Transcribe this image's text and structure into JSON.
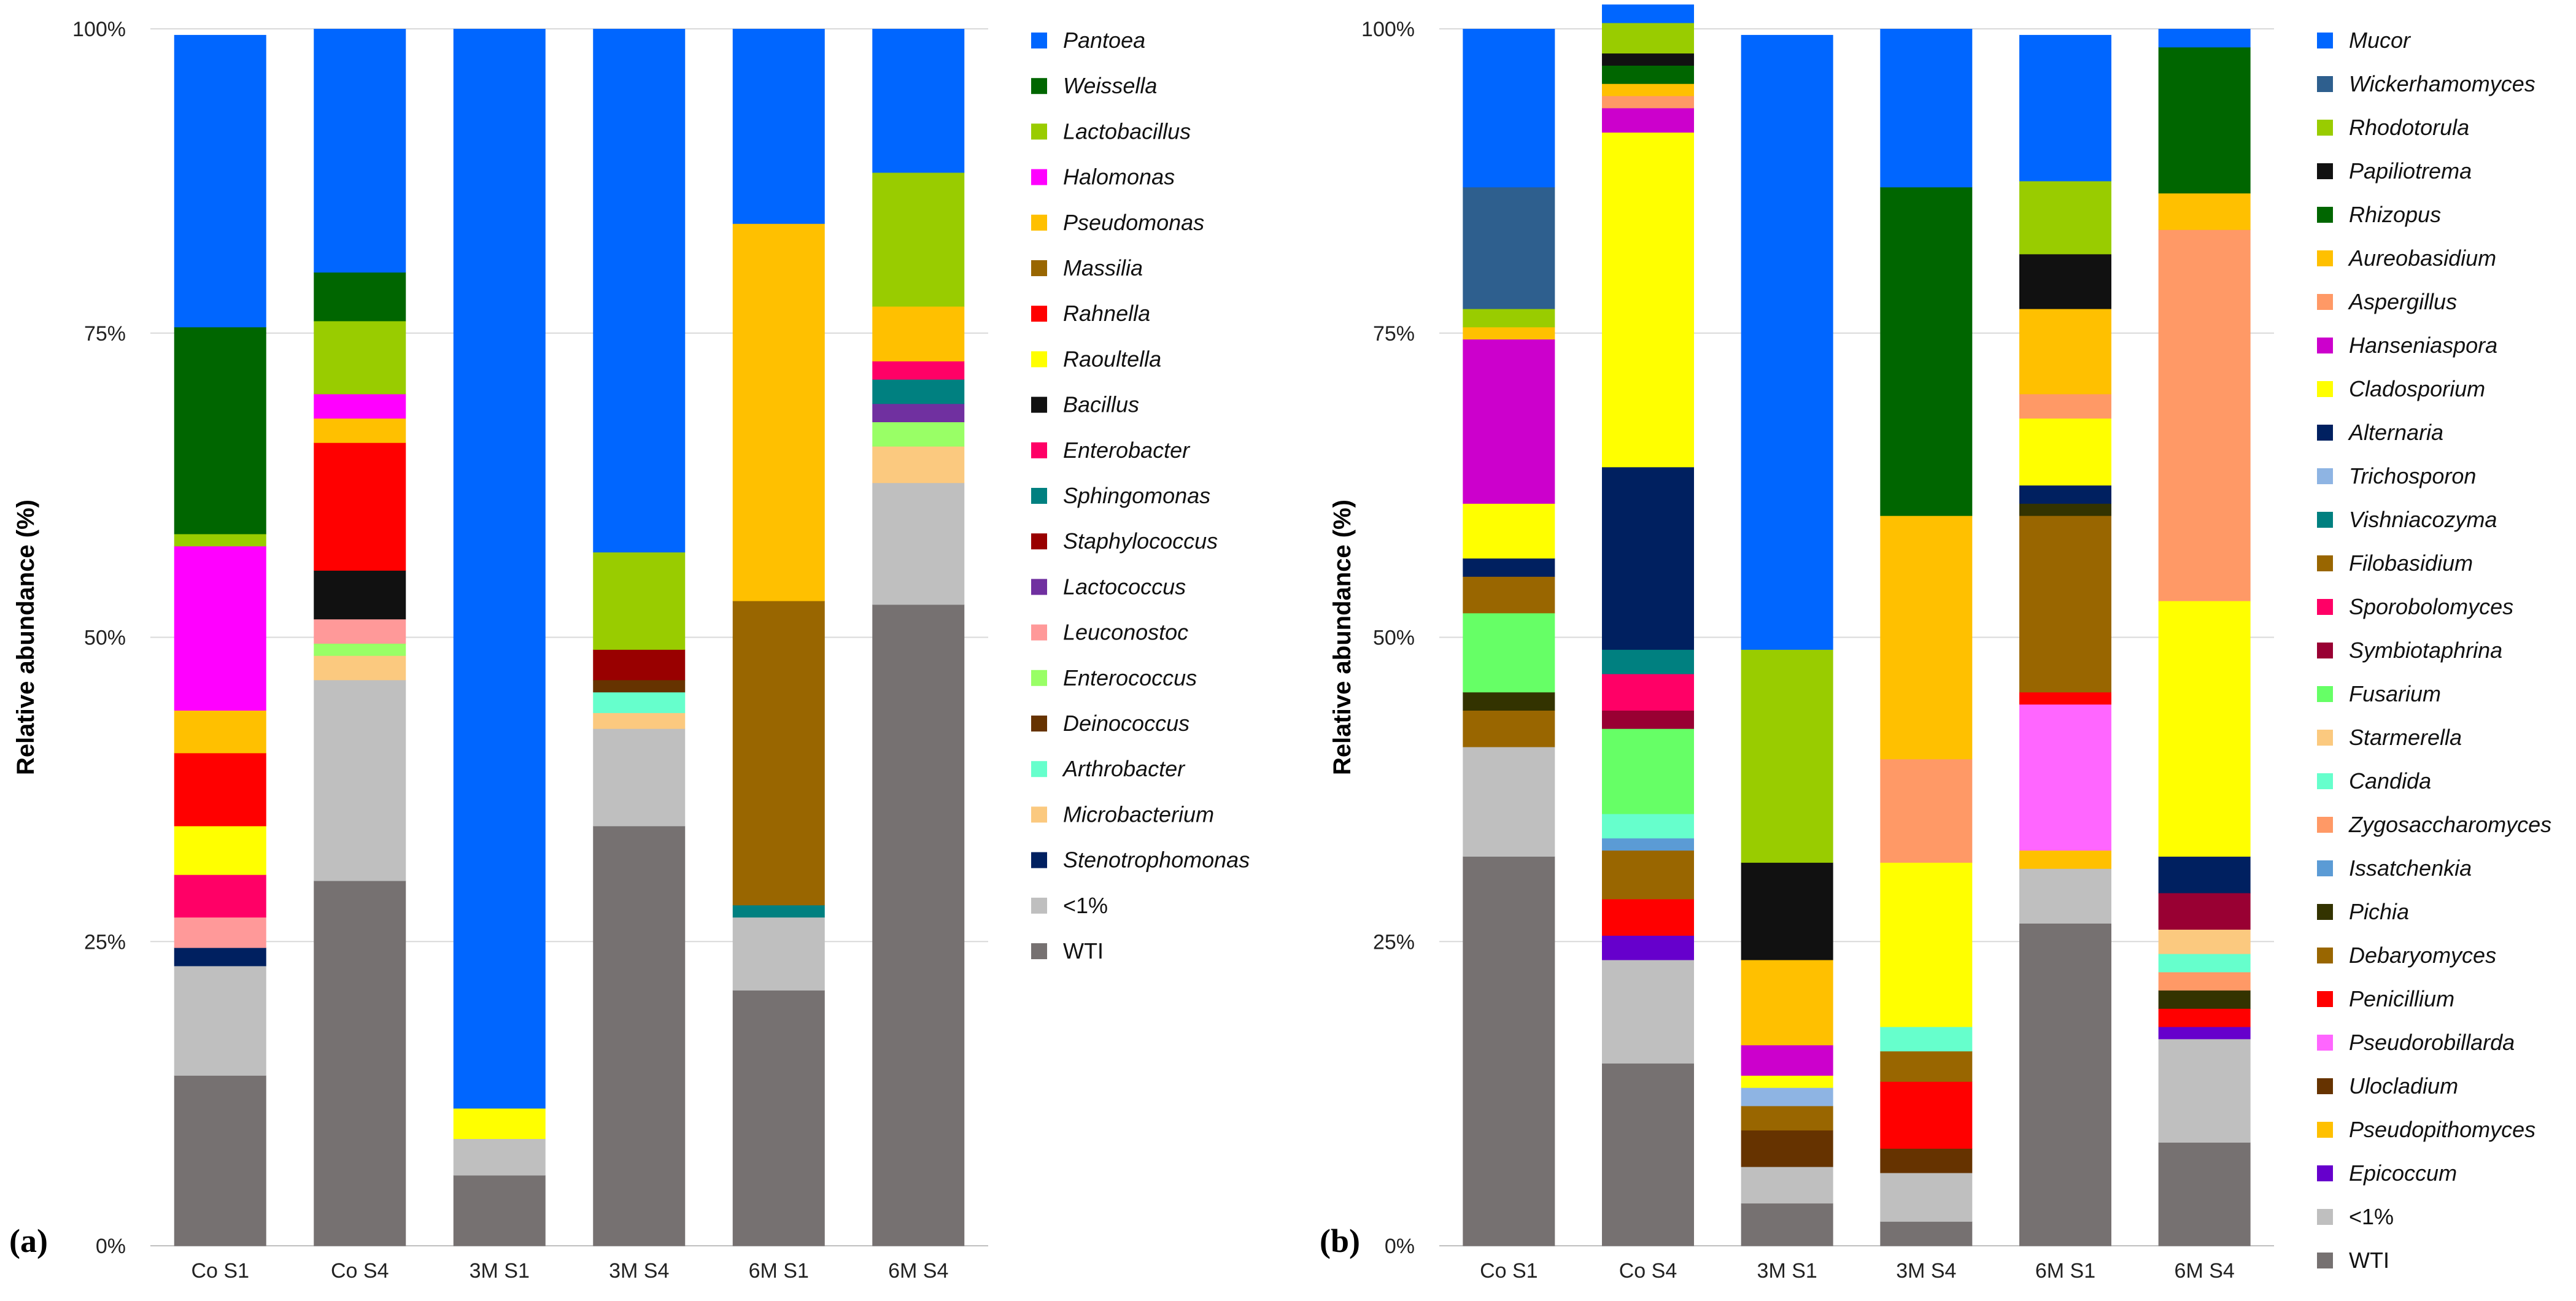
{
  "chart_data": [
    {
      "panel": "(a)",
      "type": "stacked-bar-100",
      "ylabel": "Relative abundance (%)",
      "y_ticks": [
        "0%",
        "25%",
        "50%",
        "75%",
        "100%"
      ],
      "ylim": [
        0,
        100
      ],
      "categories": [
        "Co S1",
        "Co S4",
        "3M S1",
        "3M S4",
        "6M S1",
        "6M S4"
      ],
      "legend_position": "right",
      "series": [
        {
          "name": "WTI",
          "italic": false,
          "color": "#767171",
          "values": [
            14.0,
            30.0,
            5.8,
            34.5,
            21.0,
            52.7
          ]
        },
        {
          "name": "<1%",
          "italic": false,
          "color": "#bfbfbf",
          "values": [
            9.0,
            16.5,
            3.0,
            8.0,
            6.0,
            10.0
          ]
        },
        {
          "name": "Stenotrophomonas",
          "italic": true,
          "color": "#002060",
          "values": [
            1.5,
            0,
            0,
            0,
            0,
            0
          ]
        },
        {
          "name": "Microbacterium",
          "italic": true,
          "color": "#fbc97f",
          "values": [
            0,
            2.0,
            0,
            1.3,
            0,
            3.0
          ]
        },
        {
          "name": "Arthrobacter",
          "italic": true,
          "color": "#66ffcc",
          "values": [
            0,
            0,
            0,
            1.7,
            0,
            0
          ]
        },
        {
          "name": "Deinococcus",
          "italic": true,
          "color": "#663300",
          "values": [
            0,
            0,
            0,
            1.0,
            0,
            0
          ]
        },
        {
          "name": "Enterococcus",
          "italic": true,
          "color": "#99ff66",
          "values": [
            0,
            1.0,
            0,
            0,
            0,
            2.0
          ]
        },
        {
          "name": "Leuconostoc",
          "italic": true,
          "color": "#ff9999",
          "values": [
            2.5,
            2.0,
            0,
            0,
            0,
            0
          ]
        },
        {
          "name": "Lactococcus",
          "italic": true,
          "color": "#7030a0",
          "values": [
            0,
            0,
            0,
            0,
            0,
            1.5
          ]
        },
        {
          "name": "Staphylococcus",
          "italic": true,
          "color": "#990000",
          "values": [
            0,
            0,
            0,
            2.5,
            0,
            0
          ]
        },
        {
          "name": "Sphingomonas",
          "italic": true,
          "color": "#008080",
          "values": [
            0,
            0,
            0,
            0,
            1.0,
            2.0
          ]
        },
        {
          "name": "Enterobacter",
          "italic": true,
          "color": "#ff0066",
          "values": [
            3.5,
            0,
            0,
            0,
            0,
            1.5
          ]
        },
        {
          "name": "Bacillus",
          "italic": true,
          "color": "#111111",
          "values": [
            0,
            4.0,
            0,
            0,
            0,
            0
          ]
        },
        {
          "name": "Raoultella",
          "italic": true,
          "color": "#ffff00",
          "values": [
            4.0,
            0,
            2.5,
            0,
            0,
            0
          ]
        },
        {
          "name": "Rahnella",
          "italic": true,
          "color": "#ff0000",
          "values": [
            6.0,
            10.5,
            0,
            0,
            0,
            0
          ]
        },
        {
          "name": "Massilia",
          "italic": true,
          "color": "#996600",
          "values": [
            0,
            0,
            0,
            0,
            25.0,
            0
          ]
        },
        {
          "name": "Pseudomonas",
          "italic": true,
          "color": "#ffc000",
          "values": [
            3.5,
            2.0,
            0,
            0,
            31.0,
            4.5
          ]
        },
        {
          "name": "Halomonas",
          "italic": true,
          "color": "#ff00ff",
          "values": [
            13.5,
            2.0,
            0,
            0,
            0,
            0
          ]
        },
        {
          "name": "Lactobacillus",
          "italic": true,
          "color": "#99cc00",
          "values": [
            1.0,
            6.0,
            0,
            8.0,
            0,
            11.0
          ]
        },
        {
          "name": "Weissella",
          "italic": true,
          "color": "#006600",
          "values": [
            17.0,
            4.0,
            0,
            0,
            0,
            0
          ]
        },
        {
          "name": "Pantoea",
          "italic": true,
          "color": "#0066ff",
          "values": [
            24.0,
            20.0,
            88.7,
            43.0,
            16.0,
            11.8
          ]
        }
      ]
    },
    {
      "panel": "(b)",
      "type": "stacked-bar-100",
      "ylabel": "Relative abundance (%)",
      "y_ticks": [
        "0%",
        "25%",
        "50%",
        "75%",
        "100%"
      ],
      "ylim": [
        0,
        100
      ],
      "categories": [
        "Co S1",
        "Co S4",
        "3M S1",
        "3M S4",
        "6M S1",
        "6M S4"
      ],
      "legend_position": "right",
      "series": [
        {
          "name": "WTI",
          "italic": false,
          "color": "#767171",
          "values": [
            32.0,
            15.0,
            3.5,
            2.0,
            26.5,
            8.5
          ]
        },
        {
          "name": "<1%",
          "italic": false,
          "color": "#bfbfbf",
          "values": [
            9.0,
            8.5,
            3.0,
            4.0,
            4.5,
            8.5
          ]
        },
        {
          "name": "Epicoccum",
          "italic": true,
          "color": "#6600cc",
          "values": [
            0,
            2.0,
            0,
            0,
            0,
            1.0
          ]
        },
        {
          "name": "Pseudopithomyces",
          "italic": true,
          "color": "#ffc000",
          "values": [
            0,
            0,
            0,
            0,
            1.5,
            0
          ]
        },
        {
          "name": "Ulocladium",
          "italic": true,
          "color": "#663300",
          "values": [
            0,
            0,
            3.0,
            2.0,
            0,
            0
          ]
        },
        {
          "name": "Pseudorobillarda",
          "italic": true,
          "color": "#ff66ff",
          "values": [
            0,
            0,
            0,
            0,
            12.0,
            0
          ]
        },
        {
          "name": "Penicillium",
          "italic": true,
          "color": "#ff0000",
          "values": [
            0,
            3.0,
            0,
            5.5,
            1.0,
            1.5
          ]
        },
        {
          "name": "Debaryomyces",
          "italic": true,
          "color": "#996600",
          "values": [
            3.0,
            4.0,
            2.0,
            2.5,
            14.5,
            0
          ]
        },
        {
          "name": "Pichia",
          "italic": true,
          "color": "#333300",
          "values": [
            1.5,
            0,
            0,
            0,
            1.0,
            1.5
          ]
        },
        {
          "name": "Issatchenkia",
          "italic": true,
          "color": "#5b9bd5",
          "values": [
            0,
            1.0,
            0,
            0,
            0,
            0
          ]
        },
        {
          "name": "Zygosaccharomyces",
          "italic": true,
          "color": "#ff9966",
          "values": [
            0,
            0,
            0,
            0,
            0,
            1.5
          ]
        },
        {
          "name": "Candida",
          "italic": true,
          "color": "#66ffcc",
          "values": [
            0,
            2.0,
            0,
            2.0,
            0,
            1.5
          ]
        },
        {
          "name": "Starmerella",
          "italic": true,
          "color": "#fbc97f",
          "values": [
            0,
            0,
            0,
            0,
            0,
            2.0
          ]
        },
        {
          "name": "Fusarium",
          "italic": true,
          "color": "#66ff66",
          "values": [
            6.5,
            7.0,
            0,
            0,
            0,
            0
          ]
        },
        {
          "name": "Symbiotaphrina",
          "italic": true,
          "color": "#990033",
          "values": [
            0,
            1.5,
            0,
            0,
            0,
            3.0
          ]
        },
        {
          "name": "Sporobolomyces",
          "italic": true,
          "color": "#ff0066",
          "values": [
            0,
            3.0,
            0,
            0,
            0,
            0
          ]
        },
        {
          "name": "Filobasidium",
          "italic": true,
          "color": "#996600",
          "values": [
            3.0,
            0,
            0,
            0,
            0,
            0
          ]
        },
        {
          "name": "Vishniacozyma",
          "italic": true,
          "color": "#008080",
          "values": [
            0,
            2.0,
            0,
            0,
            0,
            0
          ]
        },
        {
          "name": "Trichosporon",
          "italic": true,
          "color": "#8eb4e3",
          "values": [
            0,
            0,
            1.5,
            0,
            0,
            0
          ]
        },
        {
          "name": "Alternaria",
          "italic": true,
          "color": "#002060",
          "values": [
            1.5,
            15.0,
            0,
            0,
            1.5,
            3.0
          ]
        },
        {
          "name": "Cladosporium",
          "italic": true,
          "color": "#ffff00",
          "values": [
            4.5,
            27.5,
            1.0,
            13.5,
            5.5,
            21.0
          ]
        },
        {
          "name": "Hanseniaspora",
          "italic": true,
          "color": "#cc00cc",
          "values": [
            13.5,
            2.0,
            2.5,
            0,
            0,
            0
          ]
        },
        {
          "name": "Aspergillus",
          "italic": true,
          "color": "#ff9966",
          "values": [
            0,
            1.0,
            0,
            8.5,
            2.0,
            30.5
          ]
        },
        {
          "name": "Aureobasidium",
          "italic": true,
          "color": "#ffc000",
          "values": [
            1.0,
            1.0,
            7.0,
            20.0,
            7.0,
            3.0
          ]
        },
        {
          "name": "Rhizopus",
          "italic": true,
          "color": "#006600",
          "values": [
            0,
            1.5,
            0,
            27.0,
            0,
            12.0
          ]
        },
        {
          "name": "Papiliotrema",
          "italic": true,
          "color": "#111111",
          "values": [
            0,
            1.0,
            8.0,
            0,
            4.5,
            0
          ]
        },
        {
          "name": "Rhodotorula",
          "italic": true,
          "color": "#99cc00",
          "values": [
            1.5,
            2.5,
            17.5,
            0,
            6.0,
            0
          ]
        },
        {
          "name": "Wickerhamomyces",
          "italic": true,
          "color": "#2e5f8e",
          "values": [
            10.0,
            0,
            0,
            0,
            0,
            0
          ]
        },
        {
          "name": "Mucor",
          "italic": true,
          "color": "#0066ff",
          "values": [
            13.0,
            1.5,
            50.5,
            13.0,
            12.0,
            1.5
          ]
        }
      ]
    }
  ]
}
